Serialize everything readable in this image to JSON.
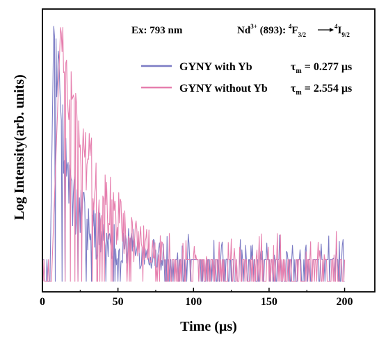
{
  "chart_data": {
    "type": "line",
    "title": "",
    "xlabel": "Time (µs)",
    "ylabel": "Log Intensity(arb. units)",
    "xlim": [
      0,
      220
    ],
    "ylim": [
      0,
      1
    ],
    "y_scale": "log",
    "x_ticks": [
      0,
      50,
      100,
      150,
      200
    ],
    "x_tick_labels": [
      "0",
      "50",
      "100",
      "150",
      "200"
    ],
    "grid": false,
    "legend_position": "top-right",
    "annotations": {
      "excitation": "Ex: 793 nm",
      "transition_prefix": "Nd",
      "transition_ion_charge": "3+",
      "transition_wavelength": " (893): ",
      "level_1_multiplicity": "4",
      "level_1_term": "F",
      "level_1_j": "3/2",
      "level_2_multiplicity": "4",
      "level_2_term": "I",
      "level_2_j": "9/2"
    },
    "lifetime_symbol": "τ",
    "lifetime_subscript": "m",
    "series": [
      {
        "name": "GYNY with Yb",
        "lifetime_value": " = 0.277 µs",
        "color": "#7b7bc4",
        "rise_start": 5,
        "peak_x": 7.5,
        "peak_y": 0.995,
        "decay_end": 80,
        "noise_end": 200,
        "x": [
          5,
          7.5,
          10,
          15,
          20,
          30,
          40,
          60,
          80
        ],
        "y": [
          0.0,
          0.995,
          0.8,
          0.5,
          0.3,
          0.22,
          0.17,
          0.13,
          0.1
        ]
      },
      {
        "name": "GYNY without Yb",
        "lifetime_value": " = 2.554 µs",
        "color": "#e67fae",
        "rise_start": 6,
        "peak_x": 12,
        "peak_y": 0.99,
        "decay_end": 80,
        "noise_end": 200,
        "x": [
          6,
          12,
          20,
          30,
          40,
          50,
          60,
          80
        ],
        "y": [
          0.0,
          0.99,
          0.64,
          0.47,
          0.33,
          0.23,
          0.16,
          0.11
        ]
      }
    ]
  }
}
